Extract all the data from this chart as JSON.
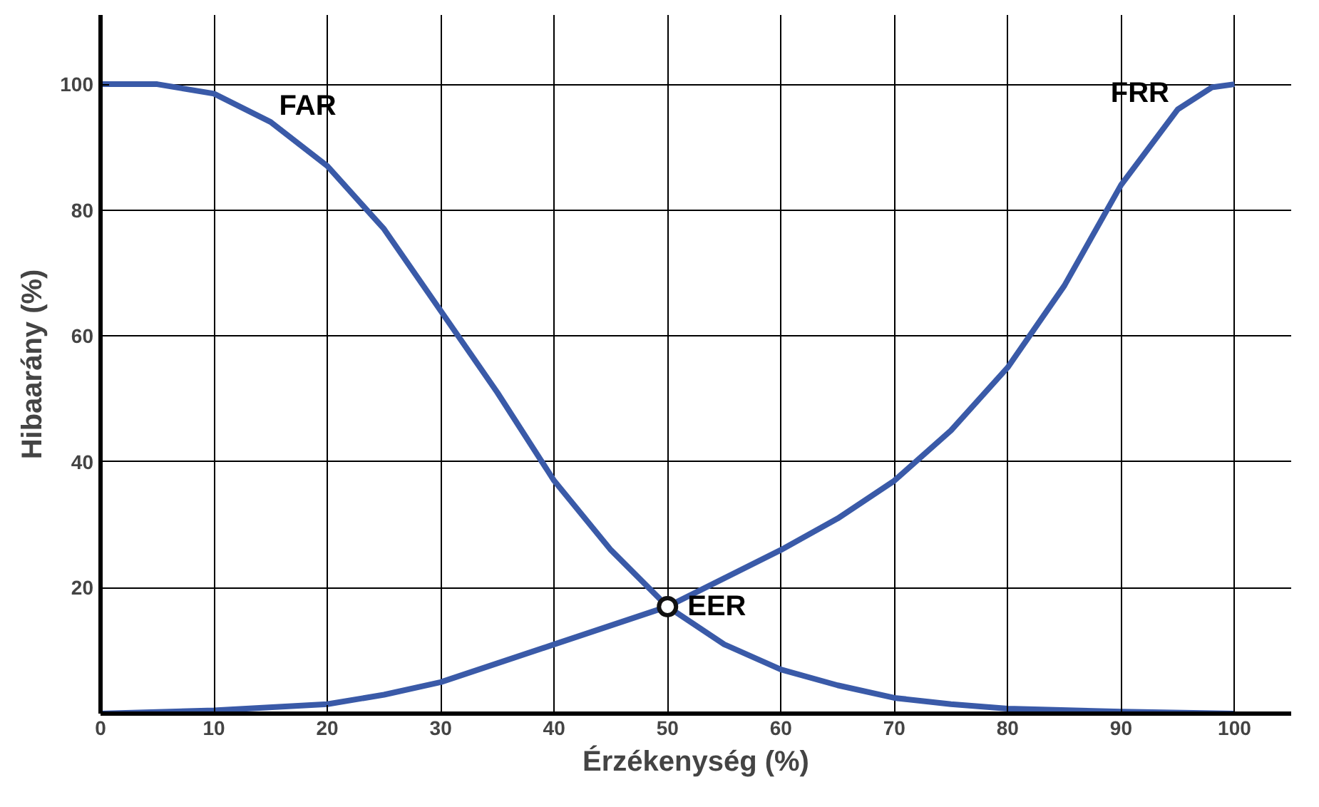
{
  "chart_data": {
    "type": "line",
    "xlabel": "Érzékenység (%)",
    "ylabel": "Hibaarány (%)",
    "xlim": [
      0,
      105
    ],
    "ylim": [
      0,
      111
    ],
    "xticks": [
      0,
      10,
      20,
      30,
      40,
      50,
      60,
      70,
      80,
      90,
      100
    ],
    "yticks": [
      20,
      40,
      60,
      80,
      100
    ],
    "grid": true,
    "marker": "none",
    "line_style": "solid",
    "series": [
      {
        "name": "FAR",
        "color": "#3a5aa8",
        "x": [
          0,
          5,
          10,
          15,
          20,
          25,
          30,
          35,
          40,
          45,
          50,
          55,
          60,
          65,
          70,
          75,
          80,
          90,
          100
        ],
        "values": [
          100,
          100,
          98.5,
          94,
          87,
          77,
          64,
          51,
          37,
          26,
          17,
          11,
          7,
          4.5,
          2.5,
          1.5,
          0.8,
          0.3,
          0
        ]
      },
      {
        "name": "FRR",
        "color": "#3a5aa8",
        "x": [
          0,
          10,
          20,
          25,
          30,
          35,
          40,
          45,
          50,
          55,
          60,
          65,
          70,
          75,
          80,
          85,
          90,
          95,
          98,
          100
        ],
        "values": [
          0,
          0.5,
          1.5,
          3,
          5,
          8,
          11,
          14,
          17,
          21.5,
          26,
          31,
          37,
          45,
          55,
          68,
          84,
          96,
          99.5,
          100
        ]
      },
      {
        "name": "EER",
        "type": "scatter",
        "marker": "circle",
        "color": "#111111",
        "x": [
          50
        ],
        "values": [
          17
        ]
      }
    ]
  }
}
